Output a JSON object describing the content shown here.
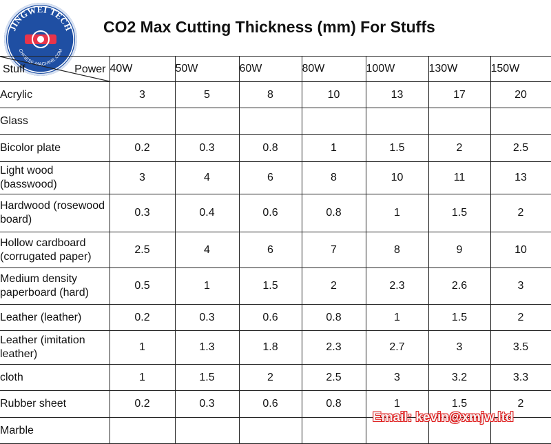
{
  "logo": {
    "brand_text": "JINGWEI TECH",
    "site_text": "CHINESE-MACHINE.COM",
    "color": "#1f4fa3"
  },
  "title": "CO2 Max Cutting Thickness (mm) For Stuffs",
  "table": {
    "corner": {
      "row_label": "Stuff",
      "col_label": "Power"
    },
    "powers": [
      "40W",
      "50W",
      "60W",
      "80W",
      "100W",
      "130W",
      "150W"
    ],
    "rows": [
      {
        "material": "Acrylic",
        "values": [
          "3",
          "5",
          "8",
          "10",
          "13",
          "17",
          "20"
        ]
      },
      {
        "material": "Glass",
        "values": [
          "",
          "",
          "",
          "",
          "",
          "",
          ""
        ]
      },
      {
        "material": "Bicolor plate",
        "values": [
          "0.2",
          "0.3",
          "0.8",
          "1",
          "1.5",
          "2",
          "2.5"
        ]
      },
      {
        "material": "Light wood (basswood)",
        "values": [
          "3",
          "4",
          "6",
          "8",
          "10",
          "11",
          "13"
        ]
      },
      {
        "material": "Hardwood (rosewood board)",
        "values": [
          "0.3",
          "0.4",
          "0.6",
          "0.8",
          "1",
          "1.5",
          "2"
        ]
      },
      {
        "material": "Hollow cardboard (corrugated paper)",
        "values": [
          "2.5",
          "4",
          "6",
          "7",
          "8",
          "9",
          "10"
        ]
      },
      {
        "material": "Medium density paperboard (hard)",
        "values": [
          "0.5",
          "1",
          "1.5",
          "2",
          "2.3",
          "2.6",
          "3"
        ]
      },
      {
        "material": "Leather (leather)",
        "values": [
          "0.2",
          "0.3",
          "0.6",
          "0.8",
          "1",
          "1.5",
          "2"
        ]
      },
      {
        "material": "Leather (imitation leather)",
        "values": [
          "1",
          "1.3",
          "1.8",
          "2.3",
          "2.7",
          "3",
          "3.5"
        ]
      },
      {
        "material": "cloth",
        "values": [
          "1",
          "1.5",
          "2",
          "2.5",
          "3",
          "3.2",
          "3.3"
        ]
      },
      {
        "material": "Rubber sheet",
        "values": [
          "0.2",
          "0.3",
          "0.6",
          "0.8",
          "1",
          "1.5",
          "2"
        ]
      },
      {
        "material": "Marble",
        "values": [
          "",
          "",
          "",
          "",
          "",
          "",
          ""
        ]
      }
    ]
  },
  "watermark": {
    "email": "Email: kevin@xmjw.ltd",
    "color": "#e02020"
  }
}
